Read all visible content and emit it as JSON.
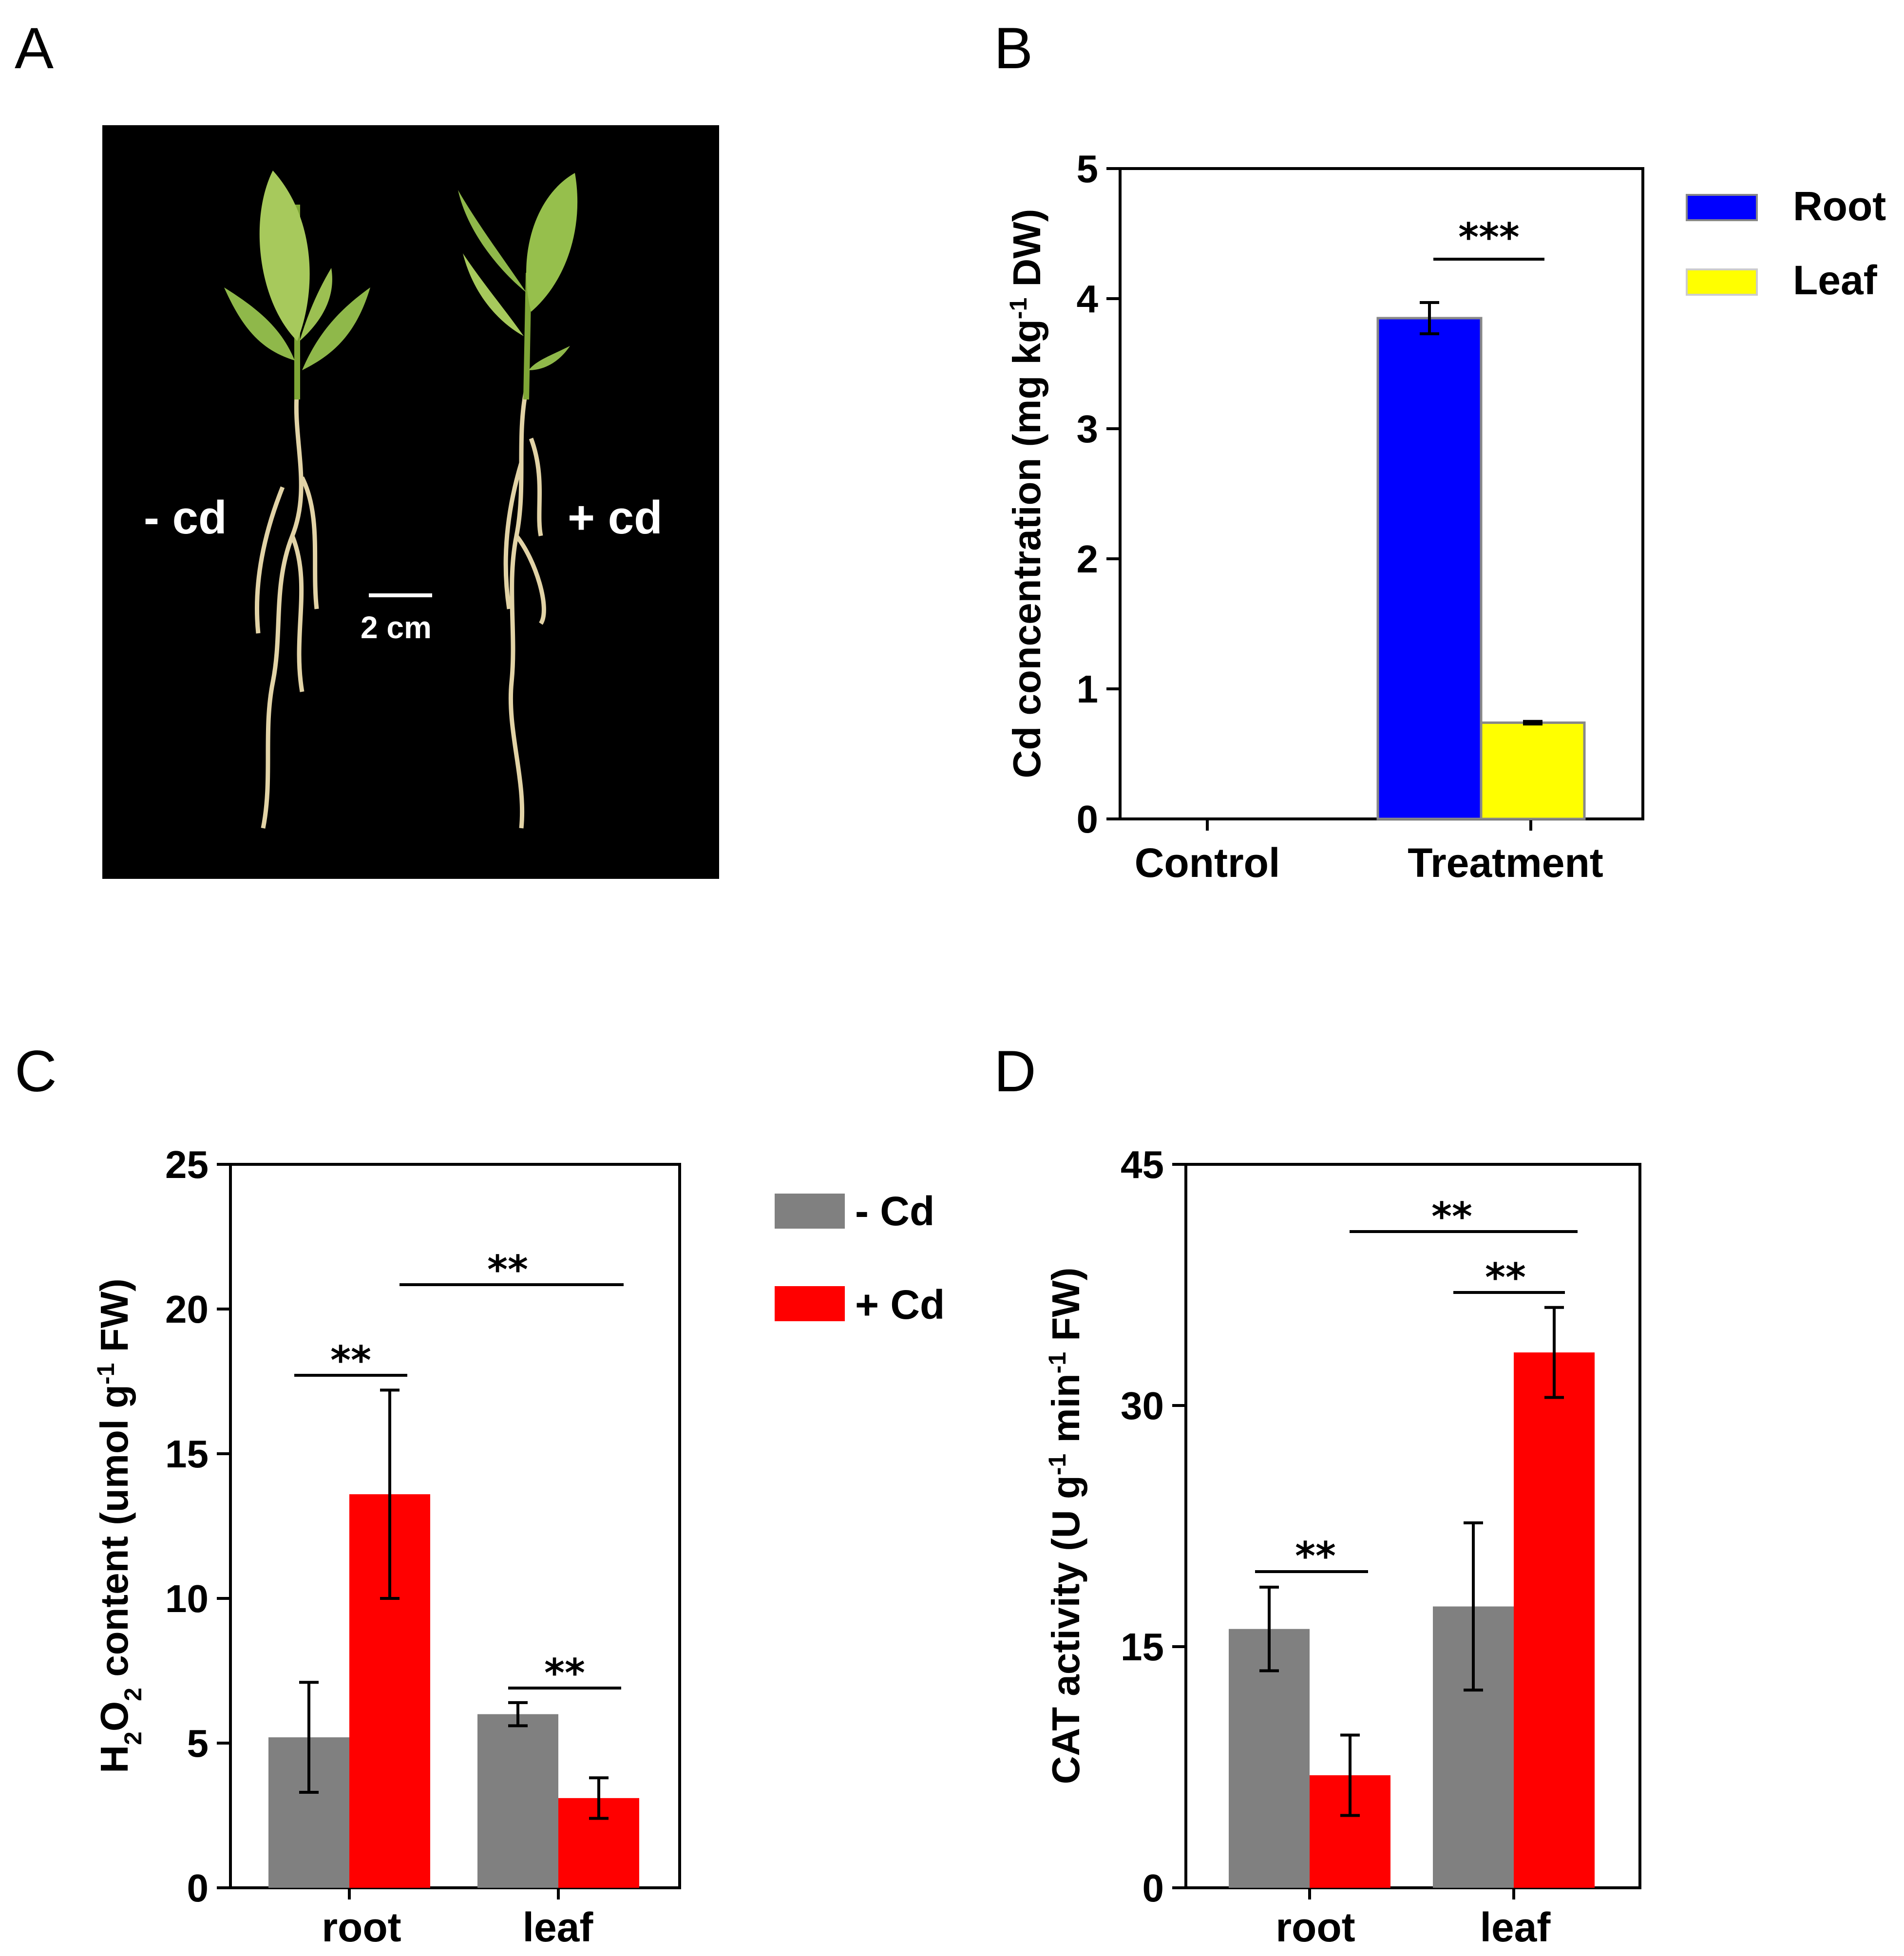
{
  "panels": {
    "a": "A",
    "b": "B",
    "c": "C",
    "d": "D"
  },
  "photo": {
    "label_minus": "- cd",
    "label_plus": "+ cd",
    "scale_text": "2 cm",
    "background": "#000000"
  },
  "colors": {
    "root": "#0000ff",
    "leaf": "#ffff00",
    "minus_cd": "#808080",
    "plus_cd": "#ff0000"
  },
  "chart_data": [
    {
      "panel": "B",
      "type": "bar",
      "categories": [
        "Control",
        "Treatment"
      ],
      "series": [
        {
          "name": "Root",
          "values": [
            0,
            3.85
          ],
          "errors": [
            0,
            0.12
          ]
        },
        {
          "name": "Leaf",
          "values": [
            0,
            0.74
          ],
          "errors": [
            0,
            0.01
          ]
        }
      ],
      "ylabel": "Cd concentration (mg kg-1 DW)",
      "ylabel_main": "Cd concentration (mg kg",
      "ylabel_sup": "-1",
      "ylabel_tail": " DW)",
      "ylim": [
        0,
        5
      ],
      "yticks": [
        "0",
        "1",
        "2",
        "3",
        "4",
        "5"
      ],
      "legend": [
        "Root",
        "Leaf"
      ],
      "legend_position": "right-top",
      "significance": [
        {
          "label": "***",
          "between": "Treatment Root vs Treatment Leaf"
        }
      ]
    },
    {
      "panel": "C",
      "type": "bar",
      "categories": [
        "root",
        "leaf"
      ],
      "series": [
        {
          "name": "- Cd",
          "values": [
            5.2,
            6.0
          ],
          "errors": [
            1.9,
            0.4
          ]
        },
        {
          "name": "+ Cd",
          "values": [
            13.6,
            3.1
          ],
          "errors": [
            3.6,
            0.7
          ]
        }
      ],
      "ylabel": "H2O2 content (umol g-1 FW)",
      "ylim": [
        0,
        25
      ],
      "yticks": [
        "0",
        "5",
        "10",
        "15",
        "20",
        "25"
      ],
      "legend": [
        "- Cd",
        "+ Cd"
      ],
      "legend_position": "right-top",
      "significance": [
        {
          "label": "**",
          "between": "root -Cd vs root +Cd"
        },
        {
          "label": "**",
          "between": "leaf -Cd vs leaf +Cd"
        },
        {
          "label": "**",
          "between": "root +Cd vs leaf +Cd"
        }
      ]
    },
    {
      "panel": "D",
      "type": "bar",
      "categories": [
        "root",
        "leaf"
      ],
      "series": [
        {
          "name": "- Cd",
          "values": [
            16.1,
            17.5
          ],
          "errors": [
            2.6,
            5.2
          ]
        },
        {
          "name": "+ Cd",
          "values": [
            7.0,
            33.3
          ],
          "errors": [
            2.5,
            2.8
          ]
        }
      ],
      "ylabel": "CAT activity (U g-1 min-1 FW)",
      "ylim": [
        0,
        45
      ],
      "yticks": [
        "0",
        "15",
        "30",
        "45"
      ],
      "significance": [
        {
          "label": "**",
          "between": "root -Cd vs root +Cd"
        },
        {
          "label": "**",
          "between": "leaf -Cd vs leaf +Cd"
        },
        {
          "label": "**",
          "between": "root +Cd vs leaf +Cd"
        }
      ]
    }
  ],
  "text": {
    "b_ylabel_main": "Cd concentration (mg kg",
    "b_ylabel_sup": "-1",
    "b_ylabel_tail": " DW)",
    "c_ylabel_h": "H",
    "c_ylabel_2a": "2",
    "c_ylabel_o": "O",
    "c_ylabel_2b": "2",
    "c_ylabel_main": " content (umol g",
    "c_ylabel_sup": "-1",
    "c_ylabel_tail": " FW)",
    "d_ylabel_a": "CAT activity (U g",
    "d_ylabel_sup1": "-1",
    "d_ylabel_b": " min",
    "d_ylabel_sup2": "-1",
    "d_ylabel_tail": " FW)",
    "sig3": "***",
    "sig2": "**"
  }
}
